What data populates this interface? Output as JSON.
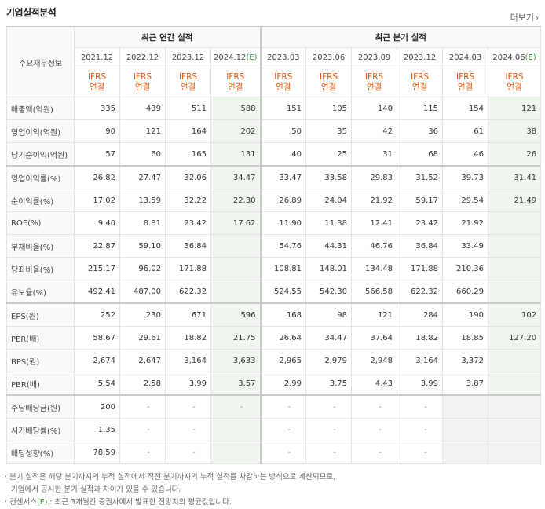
{
  "header": {
    "title": "기업실적분석",
    "more": "더보기"
  },
  "table": {
    "side_header": "주요재무정보",
    "annual_header": "최근 연간 실적",
    "quarter_header": "최근 분기 실적",
    "periods": [
      "2021.12",
      "2022.12",
      "2023.12",
      "2024.12(E)",
      "2023.03",
      "2023.06",
      "2023.09",
      "2023.12",
      "2024.03",
      "2024.06(E)"
    ],
    "ifrs_line1": "IFRS",
    "ifrs_line2": "연결",
    "rows": [
      {
        "label": "매출액(억원)",
        "values": [
          "335",
          "439",
          "511",
          "588",
          "151",
          "105",
          "140",
          "115",
          "154",
          "121"
        ]
      },
      {
        "label": "영업이익(억원)",
        "values": [
          "90",
          "121",
          "164",
          "202",
          "50",
          "35",
          "42",
          "36",
          "61",
          "38"
        ]
      },
      {
        "label": "당기순이익(억원)",
        "values": [
          "57",
          "60",
          "165",
          "131",
          "40",
          "25",
          "31",
          "68",
          "46",
          "26"
        ]
      },
      {
        "label": "영업이익률(%)",
        "values": [
          "26.82",
          "27.47",
          "32.06",
          "34.47",
          "33.47",
          "33.58",
          "29.83",
          "31.52",
          "39.73",
          "31.41"
        ]
      },
      {
        "label": "순이익률(%)",
        "values": [
          "17.02",
          "13.59",
          "32.22",
          "22.30",
          "26.89",
          "24.04",
          "21.92",
          "59.17",
          "29.54",
          "21.49"
        ]
      },
      {
        "label": "ROE(%)",
        "values": [
          "9.40",
          "8.81",
          "23.42",
          "17.62",
          "11.90",
          "11.38",
          "12.41",
          "23.42",
          "21.92",
          ""
        ]
      },
      {
        "label": "부채비율(%)",
        "values": [
          "22.87",
          "59.10",
          "36.84",
          "",
          "54.76",
          "44.31",
          "46.76",
          "36.84",
          "33.49",
          ""
        ]
      },
      {
        "label": "당좌비율(%)",
        "values": [
          "215.17",
          "96.02",
          "171.88",
          "",
          "108.81",
          "148.01",
          "134.48",
          "171.88",
          "210.36",
          ""
        ]
      },
      {
        "label": "유보율(%)",
        "values": [
          "492.41",
          "487.00",
          "622.32",
          "",
          "524.55",
          "542.30",
          "566.58",
          "622.32",
          "660.29",
          ""
        ]
      },
      {
        "label": "EPS(원)",
        "values": [
          "252",
          "230",
          "671",
          "596",
          "168",
          "98",
          "121",
          "284",
          "190",
          "102"
        ]
      },
      {
        "label": "PER(배)",
        "values": [
          "58.67",
          "29.61",
          "18.82",
          "21.75",
          "26.64",
          "34.47",
          "37.64",
          "18.82",
          "18.85",
          "127.20"
        ]
      },
      {
        "label": "BPS(원)",
        "values": [
          "2,674",
          "2,647",
          "3,164",
          "3,633",
          "2,965",
          "2,979",
          "2,948",
          "3,164",
          "3,372",
          ""
        ]
      },
      {
        "label": "PBR(배)",
        "values": [
          "5.54",
          "2.58",
          "3.99",
          "3.57",
          "2.99",
          "3.75",
          "4.43",
          "3.99",
          "3.87",
          ""
        ]
      },
      {
        "label": "주당배당금(원)",
        "values": [
          "200",
          "-",
          "-",
          "-",
          "-",
          "-",
          "-",
          "-",
          "",
          ""
        ]
      },
      {
        "label": "시가배당률(%)",
        "values": [
          "1.35",
          "-",
          "-",
          "",
          "-",
          "-",
          "-",
          "-",
          "",
          ""
        ]
      },
      {
        "label": "배당성향(%)",
        "values": [
          "78.59",
          "-",
          "-",
          "",
          "-",
          "-",
          "-",
          "-",
          "",
          ""
        ]
      }
    ]
  },
  "notes": {
    "line1": "· 분기 실적은 해당 분기까지의 누적 실적에서 직전 분기까지의 누적 실적을 차감하는 방식으로 계산되므로,",
    "line2": "기업에서 공시한 분기 실적과 차이가 있을 수 있습니다.",
    "line3_prefix": "· 컨센서스",
    "line3_e": "(E)",
    "line3_suffix": " : 최근 3개월간 증권사에서 발표한 전망치의 평균값입니다."
  }
}
